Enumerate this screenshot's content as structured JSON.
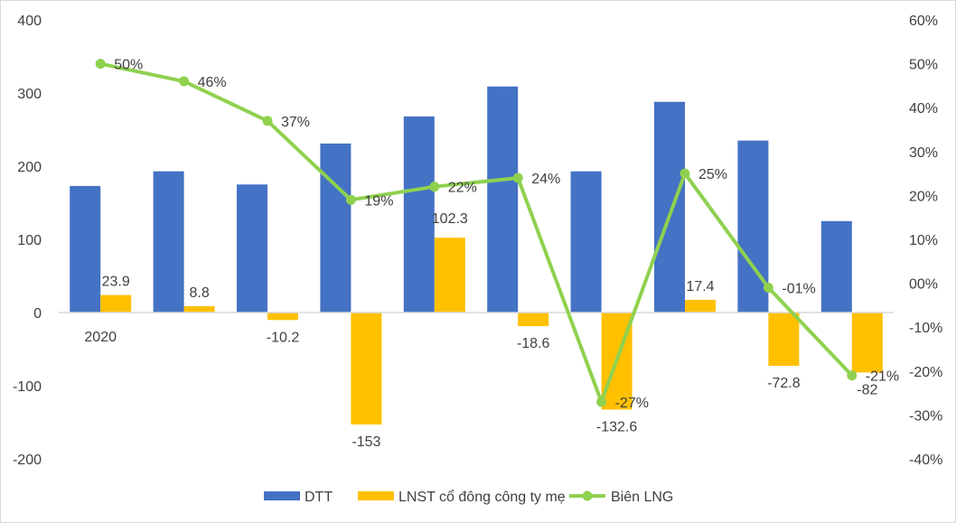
{
  "chart_data": {
    "type": "bar+line",
    "categories": [
      "2020",
      "",
      "",
      "",
      "",
      "",
      "",
      "",
      "",
      ""
    ],
    "y_left": {
      "ylim": [
        -200,
        400
      ],
      "ticks": [
        400,
        300,
        200,
        100,
        0,
        -100,
        -200
      ]
    },
    "y_right": {
      "ylim": [
        -40,
        60
      ],
      "ticks": [
        "60%",
        "50%",
        "40%",
        "30%",
        "20%",
        "10%",
        "00%",
        "-10%",
        "-20%",
        "-30%",
        "-40%"
      ]
    },
    "grid": false,
    "legend": "bottom",
    "series": [
      {
        "name": "DTT",
        "type": "bar",
        "axis": "left",
        "color": "#4472C4",
        "values": [
          173,
          193,
          175,
          231,
          268,
          309,
          193,
          288,
          235,
          125
        ],
        "labels": []
      },
      {
        "name": "LNST cổ đông công ty mẹ",
        "type": "bar",
        "axis": "left",
        "color": "#FFC000",
        "values": [
          23.9,
          8.8,
          -10.2,
          -153,
          102.3,
          -18.6,
          -132.6,
          17.4,
          -72.8,
          -82
        ],
        "labels": [
          "23.9",
          "8.8",
          "-10.2",
          "-153",
          "102.3",
          "-18.6",
          "-132.6",
          "17.4",
          "-72.8",
          "-82"
        ]
      },
      {
        "name": "Biên LNG",
        "type": "line",
        "axis": "right",
        "color": "#8FD14F",
        "values": [
          50,
          46,
          37,
          19,
          22,
          24,
          -27,
          25,
          -1,
          -21
        ],
        "labels": [
          "50%",
          "46%",
          "37%",
          "19%",
          "22%",
          "24%",
          "-27%",
          "25%",
          "-01%",
          "-21%"
        ]
      }
    ]
  }
}
